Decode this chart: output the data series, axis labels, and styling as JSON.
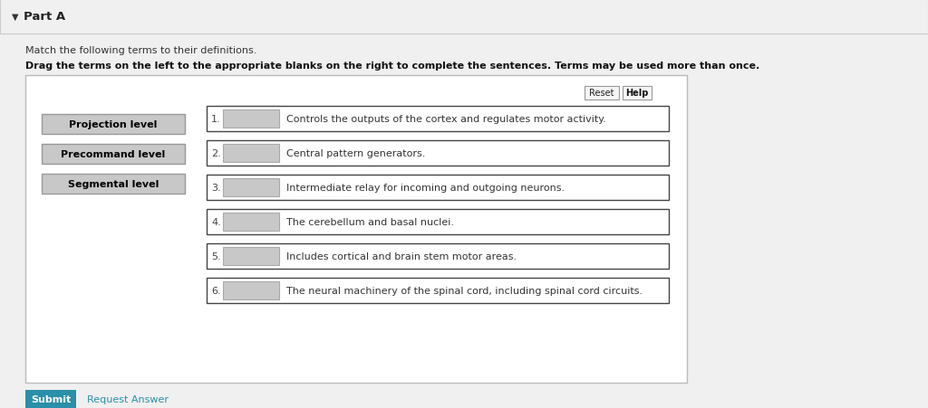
{
  "title_arrow": "▼",
  "part_label": "Part A",
  "instruction1": "Match the following terms to their definitions.",
  "instruction2": "Drag the terms on the left to the appropriate blanks on the right to complete the sentences. Terms may be used more than once.",
  "terms": [
    "Projection level",
    "Precommand level",
    "Segmental level"
  ],
  "definitions": [
    "Controls the outputs of the cortex and regulates motor activity.",
    "Central pattern generators.",
    "Intermediate relay for incoming and outgoing neurons.",
    "The cerebellum and basal nuclei.",
    "Includes cortical and brain stem motor areas.",
    "The neural machinery of the spinal cord, including spinal cord circuits."
  ],
  "bg_color": "#f0f0f0",
  "panel_bg": "#ffffff",
  "header_bg": "#f0f0f0",
  "header_border": "#cccccc",
  "term_btn_bg": "#c8c8c8",
  "term_btn_border": "#999999",
  "answer_box_bg": "#c8c8c8",
  "answer_box_border": "#aaaaaa",
  "def_box_bg": "#ffffff",
  "def_box_border": "#444444",
  "panel_border": "#bbbbbb",
  "submit_btn_color": "#2a8fa8",
  "submit_text_color": "#ffffff",
  "reset_help_bg": "#f5f5f5",
  "reset_help_border": "#999999"
}
